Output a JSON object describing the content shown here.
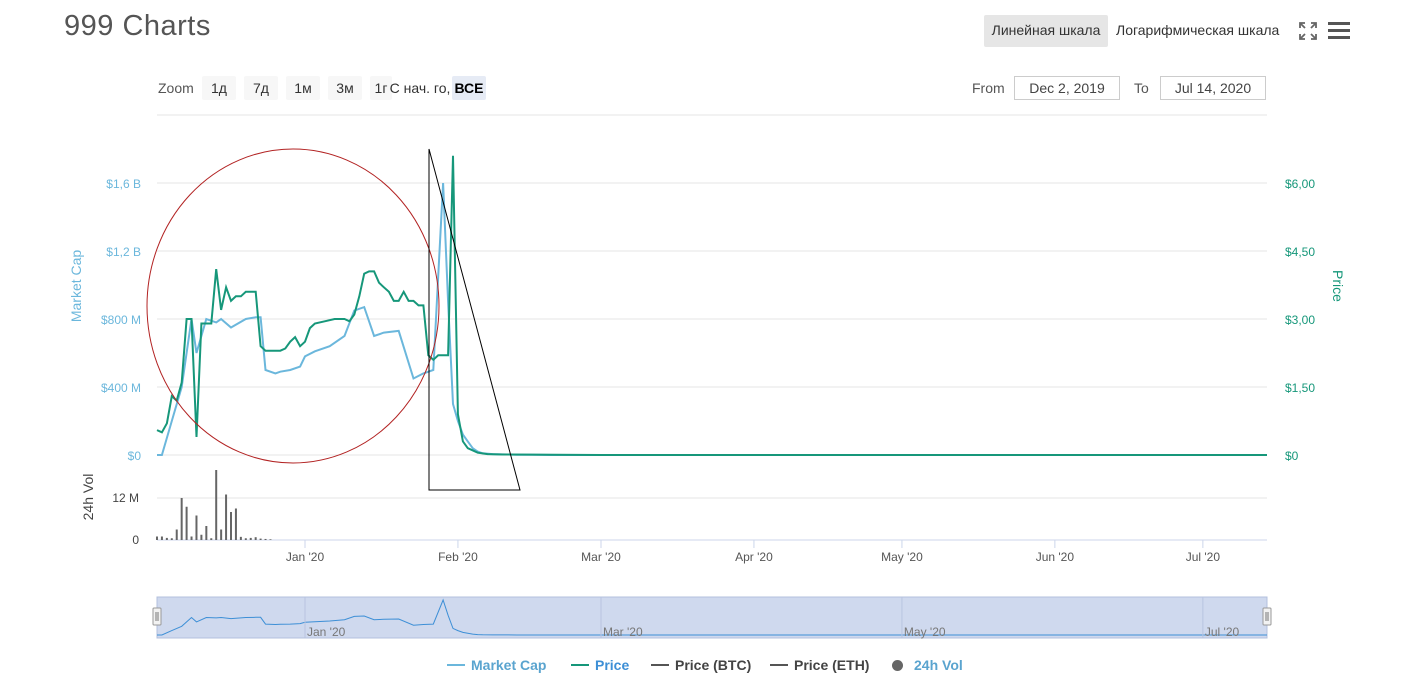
{
  "header": {
    "title": "999 Charts",
    "scale_linear": "Линейная шкала",
    "scale_log": "Логарифмическая шкала",
    "fullscreen_icon": "fullscreen-icon",
    "menu_icon": "menu-icon"
  },
  "zoom": {
    "label": "Zoom",
    "buttons": [
      "1д",
      "7д",
      "1м",
      "3м",
      "1г",
      "С нач. го,",
      "ВСЕ"
    ],
    "active": "ВСЕ"
  },
  "range": {
    "from_label": "From",
    "from_value": "Dec 2, 2019",
    "to_label": "To",
    "to_value": "Jul 14, 2020"
  },
  "colors": {
    "market_cap": "#6bb7dc",
    "price": "#16977a",
    "price_btc": "#555555",
    "price_eth": "#555555",
    "vol": "#666666",
    "navigator_fill": "#cfd9ee",
    "annotation_circle": "#b22222",
    "annotation_triangle": "#000000"
  },
  "chart_data": {
    "type": "line",
    "x_axis": {
      "ticks": [
        "Jan '20",
        "Feb '20",
        "Mar '20",
        "Apr '20",
        "May '20",
        "Jun '20",
        "Jul '20"
      ]
    },
    "left_axis": {
      "label": "Market Cap",
      "ticks": [
        "$0",
        "$400 M",
        "$800 M",
        "$1,2 B",
        "$1,6 B"
      ],
      "range": [
        0,
        1600000000
      ]
    },
    "right_axis": {
      "label": "Price",
      "ticks": [
        "$0",
        "$1,50",
        "$3,00",
        "$4,50",
        "$6,00"
      ],
      "range": [
        0,
        6
      ]
    },
    "vol_axis": {
      "label": "24h Vol",
      "ticks": [
        "0",
        "12 M"
      ],
      "range": [
        0,
        24000000
      ]
    },
    "navigator_ticks": [
      "Jan '20",
      "Mar '20",
      "May '20",
      "Jul '20"
    ],
    "series": [
      {
        "name": "Market Cap",
        "x": [
          "2019-12-02",
          "2019-12-03",
          "2019-12-05",
          "2019-12-07",
          "2019-12-09",
          "2019-12-10",
          "2019-12-12",
          "2019-12-14",
          "2019-12-15",
          "2019-12-17",
          "2019-12-20",
          "2019-12-22",
          "2019-12-23",
          "2019-12-24",
          "2019-12-26",
          "2019-12-27",
          "2019-12-29",
          "2019-12-31",
          "2020-01-01",
          "2020-01-03",
          "2020-01-06",
          "2020-01-09",
          "2020-01-11",
          "2020-01-13",
          "2020-01-15",
          "2020-01-17",
          "2020-01-20",
          "2020-01-23",
          "2020-01-25",
          "2020-01-27",
          "2020-01-29",
          "2020-01-30",
          "2020-01-31",
          "2020-02-01",
          "2020-02-02",
          "2020-02-03",
          "2020-02-04",
          "2020-02-05",
          "2020-02-06",
          "2020-02-08",
          "2020-02-11",
          "2020-02-13",
          "2020-02-16",
          "2020-02-20",
          "2020-03-01",
          "2020-04-01",
          "2020-05-01",
          "2020-06-01",
          "2020-07-01",
          "2020-07-14"
        ],
        "values": [
          0,
          0,
          200000000,
          400000000,
          800000000,
          600000000,
          800000000,
          780000000,
          800000000,
          750000000,
          800000000,
          810000000,
          810000000,
          500000000,
          480000000,
          490000000,
          500000000,
          520000000,
          580000000,
          610000000,
          640000000,
          700000000,
          850000000,
          870000000,
          700000000,
          720000000,
          730000000,
          450000000,
          480000000,
          500000000,
          1600000000,
          900000000,
          300000000,
          200000000,
          120000000,
          80000000,
          40000000,
          20000000,
          10000000,
          5000000,
          3000000,
          2000000,
          1000000,
          0,
          0,
          0,
          0,
          0,
          0,
          0
        ]
      },
      {
        "name": "Price",
        "x": [
          "2019-12-02",
          "2019-12-03",
          "2019-12-04",
          "2019-12-05",
          "2019-12-06",
          "2019-12-07",
          "2019-12-08",
          "2019-12-09",
          "2019-12-10",
          "2019-12-11",
          "2019-12-12",
          "2019-12-13",
          "2019-12-14",
          "2019-12-15",
          "2019-12-16",
          "2019-12-17",
          "2019-12-18",
          "2019-12-19",
          "2019-12-20",
          "2019-12-21",
          "2019-12-22",
          "2019-12-23",
          "2019-12-24",
          "2019-12-25",
          "2019-12-26",
          "2019-12-27",
          "2019-12-28",
          "2019-12-29",
          "2019-12-30",
          "2019-12-31",
          "2020-01-01",
          "2020-01-02",
          "2020-01-03",
          "2020-01-05",
          "2020-01-07",
          "2020-01-08",
          "2020-01-09",
          "2020-01-10",
          "2020-01-11",
          "2020-01-12",
          "2020-01-13",
          "2020-01-14",
          "2020-01-15",
          "2020-01-16",
          "2020-01-17",
          "2020-01-18",
          "2020-01-19",
          "2020-01-20",
          "2020-01-21",
          "2020-01-22",
          "2020-01-23",
          "2020-01-24",
          "2020-01-25",
          "2020-01-26",
          "2020-01-27",
          "2020-01-28",
          "2020-01-29",
          "2020-01-30",
          "2020-01-31",
          "2020-02-01",
          "2020-02-02",
          "2020-02-03",
          "2020-02-05",
          "2020-02-07",
          "2020-02-10",
          "2020-03-01",
          "2020-04-01",
          "2020-05-01",
          "2020-06-01",
          "2020-07-01",
          "2020-07-14"
        ],
        "values": [
          0.55,
          0.5,
          0.7,
          1.3,
          1.2,
          1.6,
          3.0,
          3.0,
          0.4,
          2.9,
          2.9,
          2.9,
          4.1,
          3.2,
          3.7,
          3.4,
          3.5,
          3.5,
          3.6,
          3.6,
          3.6,
          2.4,
          2.3,
          2.3,
          2.3,
          2.3,
          2.35,
          2.5,
          2.6,
          2.4,
          2.5,
          2.8,
          2.9,
          2.95,
          3.0,
          3.0,
          3.0,
          2.95,
          3.1,
          3.5,
          4.0,
          4.05,
          4.05,
          3.8,
          3.7,
          3.6,
          3.4,
          3.4,
          3.6,
          3.4,
          3.4,
          3.3,
          3.3,
          2.2,
          2.1,
          2.2,
          2.2,
          2.2,
          6.6,
          0.9,
          0.3,
          0.15,
          0.05,
          0.02,
          0.01,
          0,
          0,
          0,
          0,
          0,
          0
        ]
      },
      {
        "name": "24h Vol",
        "x": [
          "2019-12-02",
          "2019-12-03",
          "2019-12-04",
          "2019-12-05",
          "2019-12-06",
          "2019-12-07",
          "2019-12-08",
          "2019-12-09",
          "2019-12-10",
          "2019-12-11",
          "2019-12-12",
          "2019-12-13",
          "2019-12-14",
          "2019-12-15",
          "2019-12-16",
          "2019-12-17",
          "2019-12-18",
          "2019-12-19",
          "2019-12-20",
          "2019-12-21",
          "2019-12-22",
          "2019-12-23",
          "2019-12-24",
          "2019-12-25"
        ],
        "values": [
          1000000,
          1000000,
          600000,
          500000,
          3000000,
          12000000,
          9500000,
          1000000,
          7000000,
          1500000,
          4000000,
          500000,
          20000000,
          3000000,
          13000000,
          8000000,
          9000000,
          900000,
          500000,
          600000,
          800000,
          400000,
          300000,
          200000
        ]
      },
      {
        "name": "Price (BTC)",
        "x": [],
        "values": []
      },
      {
        "name": "Price (ETH)",
        "x": [],
        "values": []
      }
    ],
    "legend": [
      "Market Cap",
      "Price",
      "Price (BTC)",
      "Price (ETH)",
      "24h Vol"
    ],
    "legend_position": "bottom",
    "grid": true
  }
}
